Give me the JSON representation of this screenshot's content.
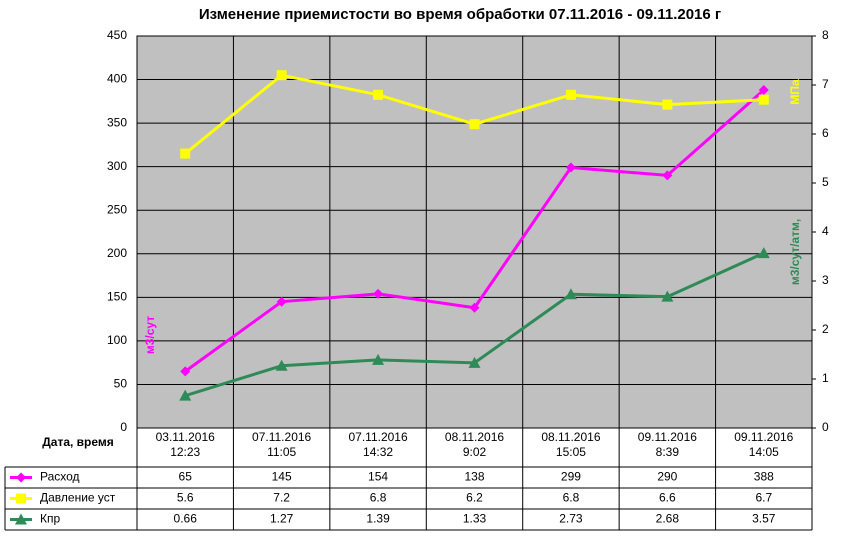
{
  "chart_data": {
    "type": "line",
    "title": "Изменение приемистости во время обработки 07.11.2016 - 09.11.2016 г",
    "table_header": "Дата, время",
    "categories": [
      [
        "03.11.2016",
        "12:23"
      ],
      [
        "07.11.2016",
        "11:05"
      ],
      [
        "07.11.2016",
        "14:32"
      ],
      [
        "08.11.2016",
        "9:02"
      ],
      [
        "08.11.2016",
        "15:05"
      ],
      [
        "09.11.2016",
        "8:39"
      ],
      [
        "09.11.2016",
        "14:05"
      ]
    ],
    "y_label": "м3/сут",
    "y2_labels": [
      "м3/сут/атм,",
      "МПа"
    ],
    "ylim": [
      0,
      450
    ],
    "yticks": [
      0,
      50,
      100,
      150,
      200,
      250,
      300,
      350,
      400,
      450
    ],
    "y2lim": [
      0,
      8
    ],
    "y2ticks": [
      0,
      1,
      2,
      3,
      4,
      5,
      6,
      7,
      8
    ],
    "grid": true,
    "series": [
      {
        "name": "Расход",
        "color": "#ff00ff",
        "marker": "diamond",
        "values": [
          65,
          145,
          154,
          138,
          299,
          290,
          388
        ]
      },
      {
        "name": "Давление  уст",
        "color": "#ffff00",
        "marker": "square",
        "axis": "y2",
        "values": [
          5.6,
          7.2,
          6.8,
          6.2,
          6.8,
          6.6,
          6.7
        ]
      },
      {
        "name": "Кпр",
        "color": "#2e8b57",
        "marker": "triangle",
        "axis": "y2",
        "values": [
          0.66,
          1.27,
          1.39,
          1.33,
          2.73,
          2.68,
          3.57
        ]
      }
    ]
  }
}
